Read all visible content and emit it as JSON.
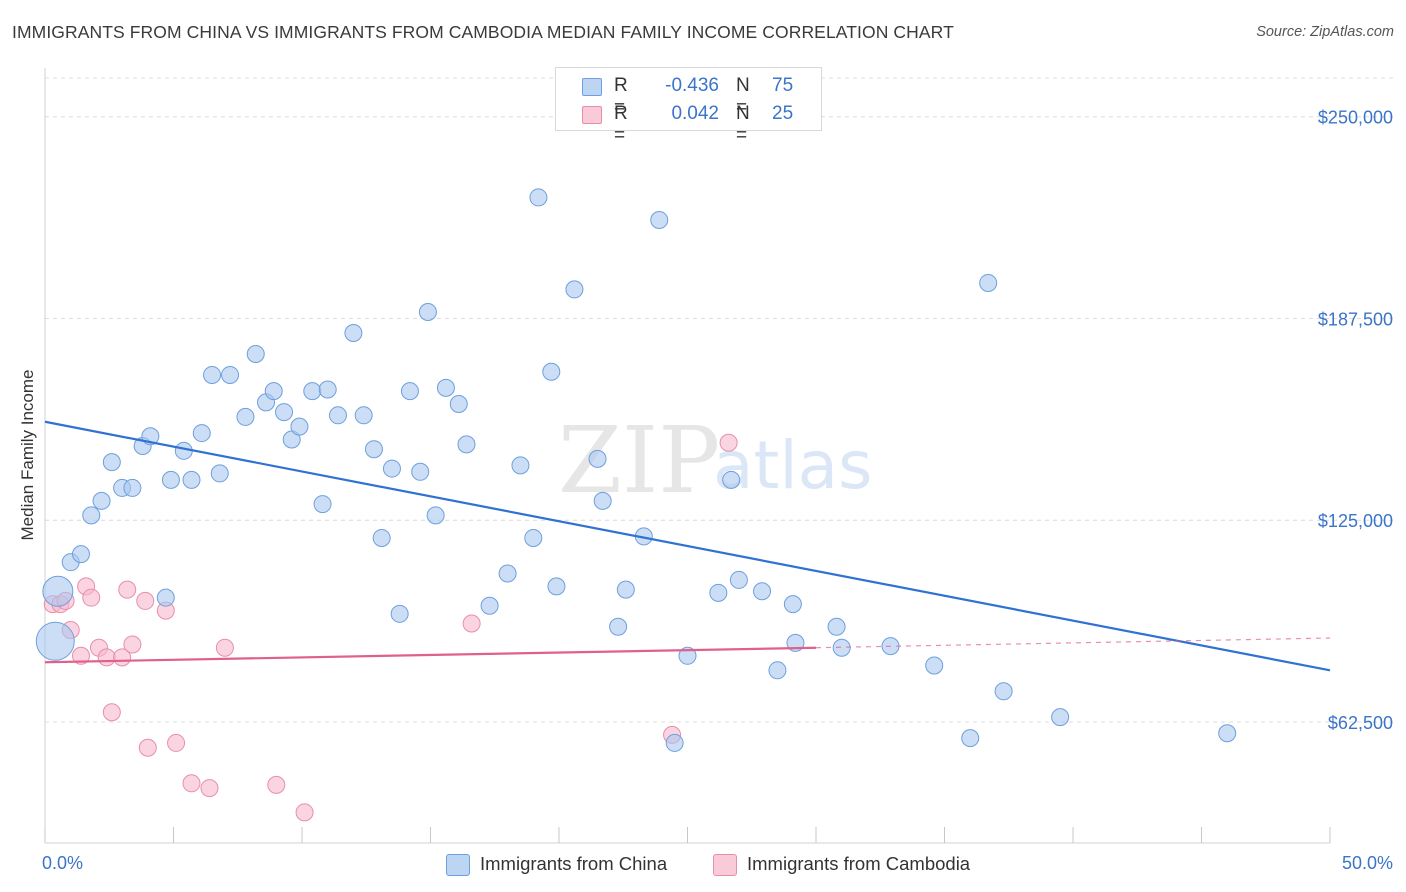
{
  "title": "IMMIGRANTS FROM CHINA VS IMMIGRANTS FROM CAMBODIA MEDIAN FAMILY INCOME CORRELATION CHART",
  "source": "Source: ZipAtlas.com",
  "watermark": {
    "zip": "ZIP",
    "atlas": "atlas"
  },
  "legend_top": {
    "r_label": "R =",
    "n_label": "N =",
    "rows": [
      {
        "r": "-0.436",
        "n": "75"
      },
      {
        "r": "0.042",
        "n": "25"
      }
    ]
  },
  "legend_bottom": [
    "Immigrants from China",
    "Immigrants from Cambodia"
  ],
  "colors": {
    "china_fill": "#a9c8f0",
    "china_stroke": "#6e9fdc",
    "china_line": "#2f72d3",
    "cambodia_fill": "#f6b9cd",
    "cambodia_stroke": "#e88eab",
    "cambodia_line": "#e0608c",
    "axis_text": "#3b74c9",
    "grid": "#dcdcdc"
  },
  "chart_data": {
    "type": "scatter",
    "title": "IMMIGRANTS FROM CHINA VS IMMIGRANTS FROM CAMBODIA MEDIAN FAMILY INCOME CORRELATION CHART",
    "xlabel": "",
    "ylabel": "Median Family Income",
    "xlim": [
      0,
      50
    ],
    "ylim": [
      25000,
      262000
    ],
    "x_tick_labels": [
      "0.0%",
      "50.0%"
    ],
    "y_ticks": [
      62500,
      125000,
      187500,
      250000
    ],
    "y_tick_labels": [
      "$62,500",
      "$125,000",
      "$187,500",
      "$250,000"
    ],
    "grid": true,
    "series": [
      {
        "name": "Immigrants from China",
        "r": -0.436,
        "n": 75,
        "trend": {
          "x": [
            0,
            50
          ],
          "y": [
            155500,
            78500
          ]
        },
        "points": [
          {
            "x": 0.4,
            "y": 87500,
            "s": 3
          },
          {
            "x": 0.5,
            "y": 103000,
            "s": 2
          },
          {
            "x": 1.0,
            "y": 112000
          },
          {
            "x": 1.4,
            "y": 114500
          },
          {
            "x": 1.8,
            "y": 126500
          },
          {
            "x": 2.2,
            "y": 131000
          },
          {
            "x": 2.6,
            "y": 143000
          },
          {
            "x": 3.0,
            "y": 135000
          },
          {
            "x": 3.4,
            "y": 135000
          },
          {
            "x": 3.8,
            "y": 148000
          },
          {
            "x": 4.1,
            "y": 151000
          },
          {
            "x": 4.7,
            "y": 101000
          },
          {
            "x": 4.9,
            "y": 137500
          },
          {
            "x": 5.4,
            "y": 146500
          },
          {
            "x": 5.7,
            "y": 137500
          },
          {
            "x": 6.1,
            "y": 152000
          },
          {
            "x": 6.5,
            "y": 170000
          },
          {
            "x": 6.8,
            "y": 139500
          },
          {
            "x": 7.2,
            "y": 170000
          },
          {
            "x": 7.8,
            "y": 157000
          },
          {
            "x": 8.2,
            "y": 176500
          },
          {
            "x": 8.6,
            "y": 161500
          },
          {
            "x": 8.9,
            "y": 165000
          },
          {
            "x": 9.3,
            "y": 158500
          },
          {
            "x": 9.6,
            "y": 150000
          },
          {
            "x": 9.9,
            "y": 154000
          },
          {
            "x": 10.4,
            "y": 165000
          },
          {
            "x": 10.8,
            "y": 130000
          },
          {
            "x": 11.0,
            "y": 165500
          },
          {
            "x": 11.4,
            "y": 157500
          },
          {
            "x": 12.0,
            "y": 183000
          },
          {
            "x": 12.4,
            "y": 157500
          },
          {
            "x": 12.8,
            "y": 147000
          },
          {
            "x": 13.1,
            "y": 119500
          },
          {
            "x": 13.5,
            "y": 141000
          },
          {
            "x": 13.8,
            "y": 96000
          },
          {
            "x": 14.2,
            "y": 165000
          },
          {
            "x": 14.6,
            "y": 140000
          },
          {
            "x": 14.9,
            "y": 189500
          },
          {
            "x": 15.2,
            "y": 126500
          },
          {
            "x": 15.6,
            "y": 166000
          },
          {
            "x": 16.1,
            "y": 161000
          },
          {
            "x": 16.4,
            "y": 148500
          },
          {
            "x": 17.3,
            "y": 98500
          },
          {
            "x": 18.0,
            "y": 108500
          },
          {
            "x": 18.5,
            "y": 142000
          },
          {
            "x": 19.2,
            "y": 225000
          },
          {
            "x": 19.0,
            "y": 119500
          },
          {
            "x": 19.7,
            "y": 171000
          },
          {
            "x": 19.9,
            "y": 104500
          },
          {
            "x": 20.6,
            "y": 196500
          },
          {
            "x": 21.5,
            "y": 144000
          },
          {
            "x": 21.7,
            "y": 131000
          },
          {
            "x": 22.3,
            "y": 92000
          },
          {
            "x": 22.6,
            "y": 103500
          },
          {
            "x": 23.3,
            "y": 120000
          },
          {
            "x": 23.9,
            "y": 218000
          },
          {
            "x": 24.5,
            "y": 56000
          },
          {
            "x": 25.0,
            "y": 83000
          },
          {
            "x": 26.2,
            "y": 102500
          },
          {
            "x": 26.7,
            "y": 137500
          },
          {
            "x": 27.0,
            "y": 106500
          },
          {
            "x": 27.9,
            "y": 103000
          },
          {
            "x": 28.5,
            "y": 78500
          },
          {
            "x": 29.1,
            "y": 99000
          },
          {
            "x": 29.2,
            "y": 87000
          },
          {
            "x": 30.8,
            "y": 92000
          },
          {
            "x": 31.0,
            "y": 85500
          },
          {
            "x": 32.9,
            "y": 86000
          },
          {
            "x": 34.6,
            "y": 80000
          },
          {
            "x": 36.0,
            "y": 57500
          },
          {
            "x": 36.7,
            "y": 198500
          },
          {
            "x": 37.3,
            "y": 72000
          },
          {
            "x": 39.5,
            "y": 64000
          },
          {
            "x": 46.0,
            "y": 59000
          }
        ]
      },
      {
        "name": "Immigrants from Cambodia",
        "r": 0.042,
        "n": 25,
        "trend": {
          "x": [
            0,
            30
          ],
          "y": [
            81000,
            85500
          ]
        },
        "trend_dashed": {
          "x": [
            30,
            50
          ],
          "y": [
            85500,
            88500
          ]
        },
        "points": [
          {
            "x": 0.3,
            "y": 99000
          },
          {
            "x": 0.6,
            "y": 99000
          },
          {
            "x": 0.8,
            "y": 100000
          },
          {
            "x": 1.0,
            "y": 91000
          },
          {
            "x": 1.4,
            "y": 83000
          },
          {
            "x": 1.6,
            "y": 104500
          },
          {
            "x": 1.8,
            "y": 101000
          },
          {
            "x": 2.1,
            "y": 85500
          },
          {
            "x": 2.4,
            "y": 82500
          },
          {
            "x": 2.6,
            "y": 65500
          },
          {
            "x": 3.0,
            "y": 82500
          },
          {
            "x": 3.2,
            "y": 103500
          },
          {
            "x": 3.4,
            "y": 86500
          },
          {
            "x": 3.9,
            "y": 100000
          },
          {
            "x": 4.0,
            "y": 54500
          },
          {
            "x": 4.7,
            "y": 97000
          },
          {
            "x": 5.1,
            "y": 56000
          },
          {
            "x": 5.7,
            "y": 43500
          },
          {
            "x": 6.4,
            "y": 42000
          },
          {
            "x": 7.0,
            "y": 85500
          },
          {
            "x": 9.0,
            "y": 43000
          },
          {
            "x": 10.1,
            "y": 34500
          },
          {
            "x": 16.6,
            "y": 93000
          },
          {
            "x": 24.4,
            "y": 58500
          },
          {
            "x": 26.6,
            "y": 149000
          }
        ]
      }
    ]
  }
}
